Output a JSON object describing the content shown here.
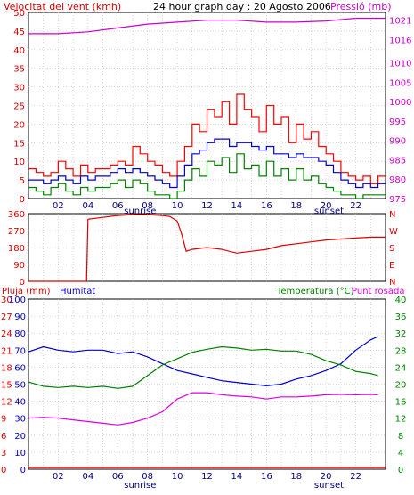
{
  "header": {
    "title": "24 hour graph day : 20 Agosto 2006",
    "left_label": "Velocitat del vent (kmh)",
    "right_label": "Pressió (mb)"
  },
  "time_axis": {
    "ticks": [
      "02",
      "04",
      "06",
      "08",
      "10",
      "12",
      "14",
      "16",
      "18",
      "20",
      "22"
    ],
    "sunrise_label": "sunrise",
    "sunset_label": "sunset",
    "sunrise_hour": 7.5,
    "sunset_hour": 20.2
  },
  "colors": {
    "wind_gust": "#ff0000",
    "wind_avg": "#0000cc",
    "wind_min": "#008000",
    "pressure": "#cc00cc",
    "direction": "#dd0000",
    "humidity": "#0000cc",
    "temperature": "#008000",
    "dewpoint": "#dd00dd",
    "rain": "#dd0000",
    "grid": "#c0c0c0",
    "left_axis": "#dd0000",
    "right_axis": "#cc00cc",
    "title_text": "#000000"
  },
  "chart_data": [
    {
      "type": "line",
      "panel": "wind-pressure",
      "x_unit": "hour",
      "xlim": [
        0,
        24
      ],
      "y_left": {
        "label": "Velocitat del vent (kmh)",
        "ticks": [
          0,
          5,
          10,
          15,
          20,
          25,
          30,
          35,
          40,
          45,
          50
        ],
        "ylim": [
          0,
          50
        ]
      },
      "y_right": {
        "label": "Pressió (mb)",
        "ticks": [
          975,
          980,
          985,
          990,
          995,
          1000,
          1005,
          1010,
          1016,
          1021
        ],
        "ylim": [
          975,
          1023
        ]
      },
      "series": [
        {
          "key": "gust",
          "axis": "left",
          "x": [
            0,
            0.5,
            1,
            1.5,
            2,
            2.5,
            3,
            3.5,
            4,
            4.5,
            5,
            5.5,
            6,
            6.5,
            7,
            7.5,
            8,
            8.5,
            9,
            9.5,
            10,
            10.5,
            11,
            11.5,
            12,
            12.5,
            13,
            13.5,
            14,
            14.5,
            15,
            15.5,
            16,
            16.5,
            17,
            17.5,
            18,
            18.5,
            19,
            19.5,
            20,
            20.5,
            21,
            21.5,
            22,
            22.5,
            23,
            23.5
          ],
          "y": [
            8,
            7,
            6,
            7,
            10,
            8,
            6,
            9,
            7,
            8,
            8,
            9,
            10,
            9,
            14,
            12,
            10,
            9,
            7,
            6,
            10,
            14,
            20,
            18,
            24,
            22,
            26,
            20,
            28,
            24,
            22,
            18,
            25,
            20,
            22,
            15,
            20,
            16,
            18,
            14,
            12,
            10,
            7,
            6,
            5,
            6,
            4,
            6
          ]
        },
        {
          "key": "average",
          "axis": "left",
          "x": [
            0,
            0.5,
            1,
            1.5,
            2,
            2.5,
            3,
            3.5,
            4,
            4.5,
            5,
            5.5,
            6,
            6.5,
            7,
            7.5,
            8,
            8.5,
            9,
            9.5,
            10,
            10.5,
            11,
            11.5,
            12,
            12.5,
            13,
            13.5,
            14,
            14.5,
            15,
            15.5,
            16,
            16.5,
            17,
            17.5,
            18,
            18.5,
            19,
            19.5,
            20,
            20.5,
            21,
            21.5,
            22,
            22.5,
            23,
            23.5
          ],
          "y": [
            5,
            5,
            4,
            5,
            6,
            5,
            4,
            6,
            5,
            6,
            6,
            7,
            8,
            7,
            8,
            7,
            6,
            5,
            4,
            3,
            6,
            9,
            12,
            13,
            15,
            16,
            16,
            14,
            15,
            15,
            14,
            13,
            14,
            12,
            12,
            11,
            12,
            11,
            11,
            10,
            9,
            7,
            5,
            4,
            3,
            4,
            3,
            4
          ]
        },
        {
          "key": "minimum",
          "axis": "left",
          "x": [
            0,
            0.5,
            1,
            1.5,
            2,
            2.5,
            3,
            3.5,
            4,
            4.5,
            5,
            5.5,
            6,
            6.5,
            7,
            7.5,
            8,
            8.5,
            9,
            9.5,
            10,
            10.5,
            11,
            11.5,
            12,
            12.5,
            13,
            13.5,
            14,
            14.5,
            15,
            15.5,
            16,
            16.5,
            17,
            17.5,
            18,
            18.5,
            19,
            19.5,
            20,
            20.5,
            21,
            21.5,
            22,
            22.5,
            23,
            23.5
          ],
          "y": [
            3,
            2,
            1,
            3,
            4,
            2,
            1,
            3,
            2,
            3,
            3,
            4,
            5,
            3,
            5,
            4,
            2,
            1,
            1,
            0,
            2,
            5,
            8,
            6,
            10,
            9,
            11,
            7,
            12,
            8,
            9,
            6,
            10,
            6,
            8,
            5,
            8,
            5,
            6,
            4,
            3,
            2,
            1,
            1,
            0,
            1,
            1,
            1
          ]
        },
        {
          "key": "pressure",
          "axis": "right",
          "x": [
            0,
            2,
            4,
            6,
            8,
            10,
            12,
            14,
            16,
            18,
            20,
            22,
            24
          ],
          "y": [
            1017.5,
            1017.5,
            1018,
            1019,
            1020,
            1020.5,
            1021,
            1021,
            1020.5,
            1020.5,
            1020.8,
            1021.5,
            1021.5
          ]
        }
      ]
    },
    {
      "type": "line",
      "panel": "wind-direction",
      "x_unit": "hour",
      "xlim": [
        0,
        24
      ],
      "y_left": {
        "ticks": [
          0,
          90,
          180,
          270,
          360
        ],
        "ylim": [
          0,
          360
        ]
      },
      "y_right": {
        "ticks": [
          "N",
          "W",
          "S",
          "E",
          "N"
        ]
      },
      "series": [
        {
          "key": "direction",
          "axis": "left",
          "x": [
            0,
            3.9,
            4.0,
            5,
            6,
            7,
            8,
            9,
            9.5,
            10,
            10.3,
            10.6,
            11,
            12,
            13,
            14,
            15,
            16,
            17,
            18,
            19,
            20,
            21,
            22,
            23,
            24
          ],
          "y": [
            0,
            0,
            330,
            340,
            350,
            355,
            355,
            350,
            345,
            320,
            250,
            160,
            170,
            180,
            170,
            150,
            160,
            170,
            190,
            200,
            210,
            220,
            225,
            230,
            235,
            235
          ]
        }
      ]
    },
    {
      "type": "line",
      "panel": "humidity-temperature",
      "x_unit": "hour",
      "xlim": [
        0,
        24
      ],
      "y_left_rain": {
        "label": "Pluja (mm)",
        "ticks": [
          0,
          3,
          6,
          9,
          12,
          15,
          18,
          21,
          24,
          27,
          30
        ]
      },
      "y_left_humidity": {
        "label": "Humitat",
        "ticks": [
          0,
          10,
          20,
          30,
          40,
          50,
          60,
          70,
          80,
          90,
          100
        ],
        "ylim": [
          0,
          100
        ]
      },
      "y_right": {
        "label": "Temperatura (°C)",
        "label2": "Punt rosada",
        "ticks": [
          0,
          4,
          8,
          12,
          16,
          20,
          24,
          28,
          32,
          36,
          40
        ],
        "ylim": [
          0,
          40
        ]
      },
      "series": [
        {
          "key": "humidity",
          "axis": "left",
          "x": [
            0,
            1,
            2,
            3,
            4,
            5,
            6,
            7,
            8,
            9,
            10,
            11,
            12,
            13,
            14,
            15,
            16,
            17,
            18,
            19,
            20,
            21,
            22,
            23,
            23.5
          ],
          "y": [
            69,
            72,
            70,
            69,
            70,
            70,
            68,
            69,
            66,
            62,
            58,
            56,
            54,
            52,
            51,
            50,
            49,
            50,
            53,
            55,
            58,
            62,
            70,
            76,
            78
          ]
        },
        {
          "key": "temperature",
          "axis": "right",
          "x": [
            0,
            1,
            2,
            3,
            4,
            5,
            6,
            7,
            8,
            9,
            10,
            11,
            12,
            13,
            14,
            15,
            16,
            17,
            18,
            19,
            20,
            21,
            22,
            23,
            23.5
          ],
          "y": [
            20.5,
            19.5,
            19.2,
            19.5,
            19.2,
            19.5,
            19.0,
            19.5,
            22.0,
            24.5,
            26.0,
            27.5,
            28.2,
            28.8,
            28.5,
            28.0,
            28.2,
            27.8,
            27.8,
            27.0,
            25.5,
            24.5,
            23.0,
            22.5,
            22.0
          ]
        },
        {
          "key": "dewpoint",
          "axis": "right",
          "x": [
            0,
            1,
            2,
            3,
            4,
            5,
            6,
            7,
            8,
            9,
            10,
            11,
            12,
            13,
            14,
            15,
            16,
            17,
            18,
            19,
            20,
            21,
            22,
            23,
            23.5
          ],
          "y": [
            12.0,
            12.2,
            12.0,
            11.6,
            11.2,
            10.8,
            10.4,
            11.0,
            12.0,
            13.5,
            16.5,
            18.0,
            18.0,
            17.5,
            17.2,
            17.0,
            16.5,
            17.0,
            17.0,
            17.2,
            17.5,
            17.6,
            17.5,
            17.6,
            17.5
          ]
        },
        {
          "key": "rain",
          "axis": "left_rain",
          "x": [
            0,
            24
          ],
          "y": [
            0,
            0
          ]
        }
      ]
    }
  ]
}
